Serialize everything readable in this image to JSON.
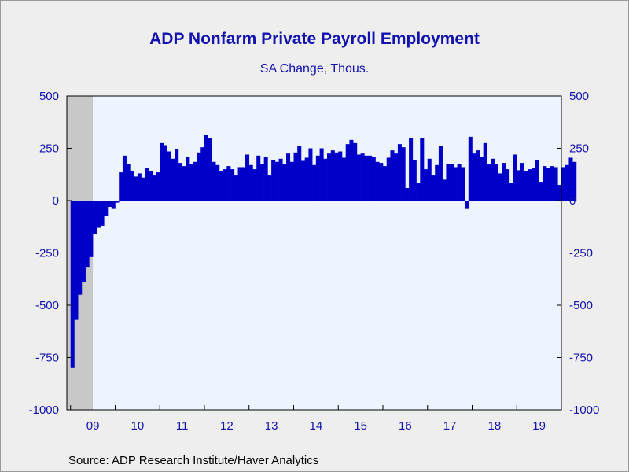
{
  "header": {
    "title": "ADP Nonfarm Private Payroll Employment",
    "subtitle": "SA Change, Thous."
  },
  "footer": {
    "source": "Source:  ADP Research Institute/Haver Analytics"
  },
  "colors": {
    "bar": "#0000c8",
    "plot_bg": "#eef4ff",
    "recession": "#c8c8c8",
    "text": "#1212b0"
  },
  "chart_data": {
    "type": "bar",
    "title": "ADP Nonfarm Private Payroll Employment",
    "subtitle": "SA Change, Thous.",
    "ylim": [
      -1000,
      500
    ],
    "yticks": [
      500,
      250,
      0,
      -250,
      -500,
      -750,
      -1000
    ],
    "ytick_labels": [
      "500",
      "250",
      "0",
      "-250",
      "-500",
      "-750",
      "-1000"
    ],
    "right_axis": true,
    "grid": false,
    "start": "2009-01",
    "x_tick_labels": [
      "09",
      "10",
      "11",
      "12",
      "13",
      "14",
      "15",
      "16",
      "17",
      "18",
      "19"
    ],
    "recession": {
      "start": "2008-12",
      "end": "2009-06"
    },
    "values": [
      -800,
      -570,
      -450,
      -390,
      -320,
      -270,
      -160,
      -130,
      -120,
      -75,
      -30,
      -40,
      -10,
      135,
      215,
      175,
      140,
      115,
      130,
      110,
      155,
      140,
      120,
      135,
      275,
      265,
      235,
      200,
      245,
      180,
      165,
      210,
      175,
      185,
      230,
      255,
      315,
      300,
      185,
      170,
      140,
      150,
      165,
      150,
      120,
      160,
      160,
      220,
      170,
      150,
      215,
      175,
      210,
      120,
      195,
      185,
      200,
      175,
      225,
      185,
      230,
      260,
      190,
      205,
      250,
      170,
      215,
      250,
      200,
      225,
      240,
      230,
      235,
      205,
      270,
      290,
      275,
      220,
      225,
      215,
      215,
      210,
      185,
      180,
      165,
      205,
      240,
      225,
      270,
      255,
      60,
      300,
      195,
      85,
      300,
      150,
      200,
      120,
      170,
      260,
      100,
      175,
      175,
      160,
      175,
      160,
      -40,
      305,
      225,
      240,
      210,
      275,
      175,
      200,
      175,
      130,
      180,
      150,
      85,
      220,
      145,
      180,
      140,
      150,
      155,
      195,
      90,
      165,
      155,
      165,
      160,
      75,
      160,
      170,
      205,
      185
    ]
  }
}
